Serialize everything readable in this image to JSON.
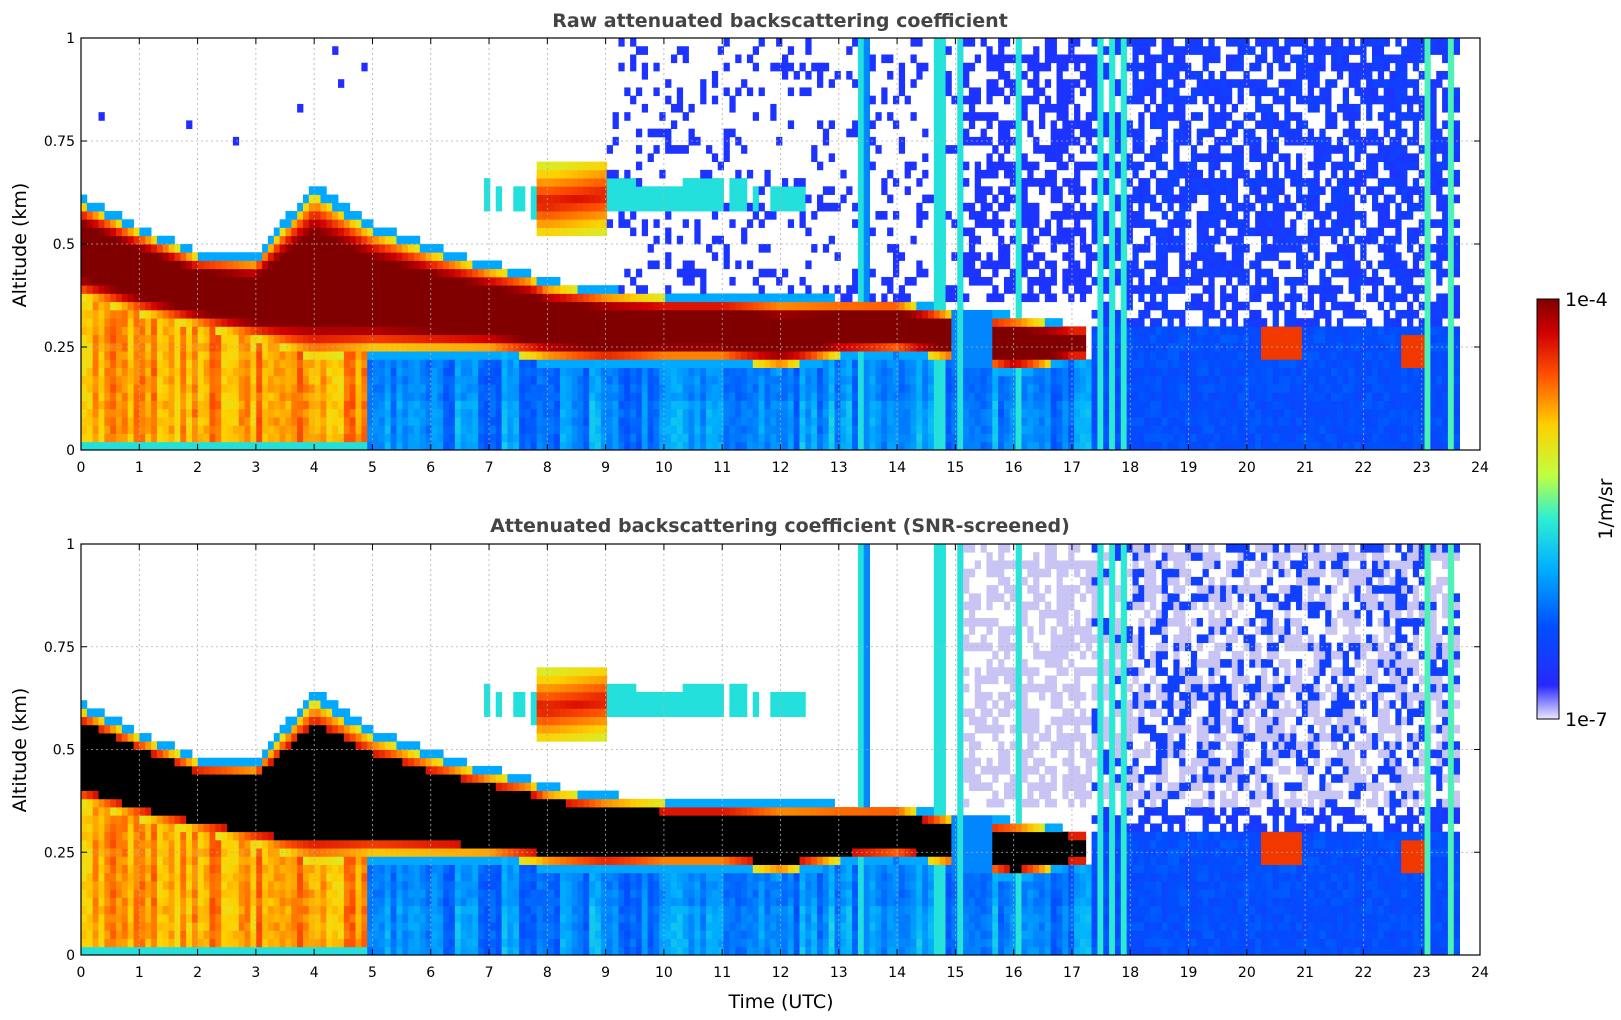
{
  "chart_data": [
    {
      "type": "heatmap",
      "title": "Raw attenuated backscattering coefficient",
      "xlabel": "",
      "ylabel": "Altitude (km)",
      "xlim": [
        0,
        24
      ],
      "ylim": [
        0,
        1
      ],
      "xticks": [
        "0",
        "1",
        "2",
        "3",
        "4",
        "5",
        "6",
        "7",
        "8",
        "9",
        "10",
        "11",
        "12",
        "13",
        "14",
        "15",
        "16",
        "17",
        "18",
        "19",
        "20",
        "21",
        "22",
        "23",
        "24"
      ],
      "yticks": [
        "0",
        "0.25",
        "0.5",
        "0.75",
        "1"
      ],
      "grid": true,
      "data_end_time": 23.65,
      "layer_top_km": [
        [
          0,
          0.6
        ],
        [
          1,
          0.53
        ],
        [
          2,
          0.47
        ],
        [
          3,
          0.46
        ],
        [
          4,
          0.62
        ],
        [
          5,
          0.53
        ],
        [
          6,
          0.48
        ],
        [
          7,
          0.44
        ],
        [
          7.7,
          0.42
        ],
        [
          8,
          0.4
        ],
        [
          9,
          0.38
        ],
        [
          10,
          0.37
        ],
        [
          11,
          0.37
        ],
        [
          12,
          0.36
        ],
        [
          13,
          0.36
        ],
        [
          14,
          0.36
        ],
        [
          15,
          0.33
        ],
        [
          16,
          0.32
        ],
        [
          17,
          0.3
        ]
      ],
      "layer_bottom_km": [
        [
          0,
          0.37
        ],
        [
          1,
          0.33
        ],
        [
          2,
          0.3
        ],
        [
          3,
          0.27
        ],
        [
          4,
          0.22
        ],
        [
          5,
          0.24
        ],
        [
          6,
          0.24
        ],
        [
          7,
          0.24
        ],
        [
          8,
          0.22
        ],
        [
          9,
          0.21
        ],
        [
          10,
          0.22
        ],
        [
          11,
          0.22
        ],
        [
          12,
          0.2
        ],
        [
          13,
          0.23
        ],
        [
          14,
          0.24
        ],
        [
          15,
          0.22
        ],
        [
          16,
          0.19
        ],
        [
          17,
          0.22
        ]
      ],
      "elevated_layer_km": [
        [
          6.8,
          0.62
        ],
        [
          8,
          0.6
        ],
        [
          9,
          0.62
        ],
        [
          10,
          0.61
        ],
        [
          10.6,
          0.62
        ],
        [
          12.2,
          0.61
        ]
      ],
      "vertical_streaks_utc": [
        13.4,
        14.7,
        14.8,
        15.1,
        16.1,
        17.5,
        17.7,
        17.9,
        23.1,
        23.5
      ],
      "high_value_patches": [
        {
          "t": [
            20.2,
            20.9
          ],
          "alt": [
            0.22,
            0.3
          ]
        },
        {
          "t": [
            22.6,
            23.0
          ],
          "alt": [
            0.2,
            0.28
          ]
        }
      ]
    },
    {
      "type": "heatmap",
      "title": "Attenuated backscattering coefficient (SNR-screened)",
      "xlabel": "Time (UTC)",
      "ylabel": "Altitude (km)",
      "xlim": [
        0,
        24
      ],
      "ylim": [
        0,
        1
      ],
      "xticks": [
        "0",
        "1",
        "2",
        "3",
        "4",
        "5",
        "6",
        "7",
        "8",
        "9",
        "10",
        "11",
        "12",
        "13",
        "14",
        "15",
        "16",
        "17",
        "18",
        "19",
        "20",
        "21",
        "22",
        "23",
        "24"
      ],
      "yticks": [
        "0",
        "0.25",
        "0.5",
        "0.75",
        "1"
      ],
      "grid": true,
      "data_end_time": 23.65,
      "saturated_color": "#000000"
    }
  ],
  "colorbar": {
    "max_label": "1e-4",
    "min_label": "1e-7",
    "label": "1/m/sr",
    "colormap": [
      "#ebe8ff",
      "#1a1aff",
      "#0060ff",
      "#00c0ff",
      "#40ffc0",
      "#c0ff40",
      "#ffd000",
      "#ff6000",
      "#e00000",
      "#8a0000"
    ]
  }
}
